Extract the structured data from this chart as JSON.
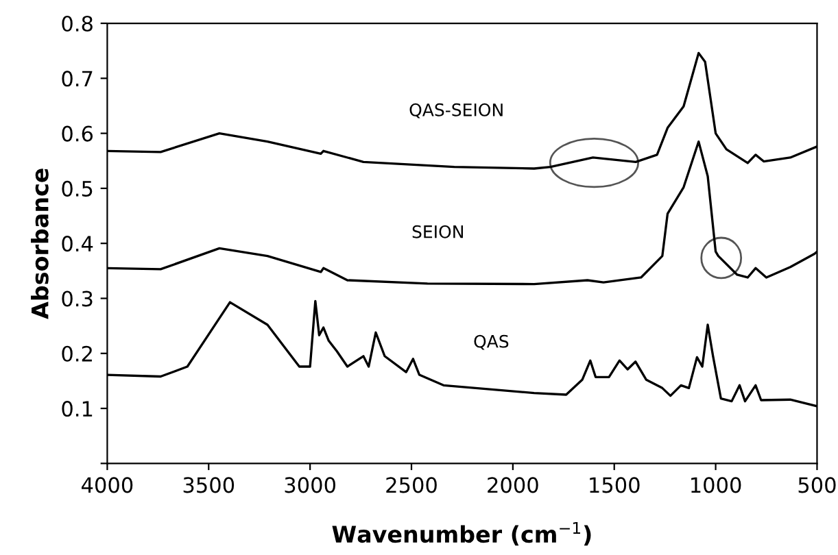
{
  "chart_data": {
    "type": "line",
    "xlabel": "Wavenumber (cm$^{−1}$)",
    "ylabel": "Absorbance",
    "xlim": [
      4000,
      500
    ],
    "xticks": [
      4000,
      3500,
      3000,
      2500,
      2000,
      1500,
      1000,
      500
    ],
    "ylim": [
      0,
      0.8
    ],
    "yticks": [
      {
        "value": 0,
        "label": null
      },
      0.1,
      0.2,
      0.3,
      0.4,
      0.5,
      0.6,
      0.7,
      0.8
    ],
    "grid": false,
    "legend": false,
    "marker": "none",
    "line_style": "solid",
    "series": [
      {
        "name": "QAS-SEION",
        "color": "#000000",
        "x": [
          4000,
          3737,
          3447,
          3210,
          2947,
          2934,
          2737,
          2289,
          1895,
          1815,
          1605,
          1394,
          1289,
          1237,
          1158,
          1084,
          1052,
          1000,
          947,
          842,
          803,
          763,
          632,
          500
        ],
        "values": [
          0.568,
          0.566,
          0.6,
          0.585,
          0.563,
          0.568,
          0.548,
          0.539,
          0.536,
          0.539,
          0.556,
          0.548,
          0.561,
          0.61,
          0.649,
          0.746,
          0.73,
          0.6,
          0.571,
          0.546,
          0.561,
          0.549,
          0.556,
          0.576
        ]
      },
      {
        "name": "SEION",
        "color": "#000000",
        "x": [
          4000,
          3737,
          3447,
          3210,
          2947,
          2934,
          2816,
          2421,
          1895,
          1632,
          1553,
          1368,
          1263,
          1237,
          1158,
          1084,
          1039,
          1000,
          987,
          894,
          842,
          803,
          750,
          632,
          513,
          500
        ],
        "values": [
          0.355,
          0.353,
          0.391,
          0.377,
          0.348,
          0.355,
          0.333,
          0.327,
          0.326,
          0.333,
          0.329,
          0.338,
          0.377,
          0.454,
          0.502,
          0.585,
          0.522,
          0.385,
          0.377,
          0.343,
          0.338,
          0.355,
          0.338,
          0.357,
          0.381,
          0.385
        ]
      },
      {
        "name": "QAS",
        "color": "#000000",
        "x": [
          4000,
          3737,
          3605,
          3395,
          3210,
          3053,
          3000,
          2974,
          2955,
          2934,
          2908,
          2868,
          2816,
          2737,
          2711,
          2676,
          2632,
          2526,
          2492,
          2461,
          2342,
          1895,
          1737,
          1658,
          1618,
          1592,
          1526,
          1474,
          1434,
          1395,
          1342,
          1263,
          1223,
          1171,
          1132,
          1092,
          1066,
          1039,
          1013,
          974,
          921,
          882,
          855,
          803,
          776,
          632,
          500
        ],
        "values": [
          0.161,
          0.158,
          0.176,
          0.293,
          0.252,
          0.176,
          0.176,
          0.295,
          0.233,
          0.247,
          0.223,
          0.204,
          0.176,
          0.195,
          0.176,
          0.238,
          0.195,
          0.166,
          0.19,
          0.161,
          0.142,
          0.128,
          0.125,
          0.152,
          0.187,
          0.157,
          0.157,
          0.187,
          0.171,
          0.185,
          0.152,
          0.137,
          0.123,
          0.142,
          0.137,
          0.193,
          0.176,
          0.252,
          0.195,
          0.118,
          0.113,
          0.142,
          0.113,
          0.142,
          0.115,
          0.116,
          0.104
        ]
      }
    ]
  }
}
